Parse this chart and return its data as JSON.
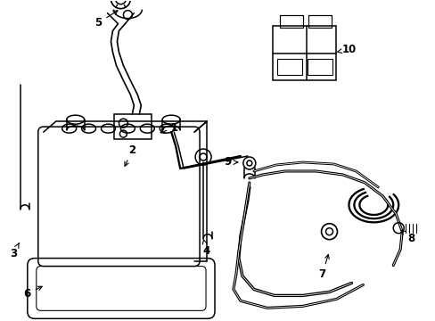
{
  "background_color": "#ffffff",
  "line_color": "#000000",
  "line_width": 1.1,
  "label_fontsize": 8.5,
  "fig_width": 4.89,
  "fig_height": 3.6,
  "dpi": 100
}
